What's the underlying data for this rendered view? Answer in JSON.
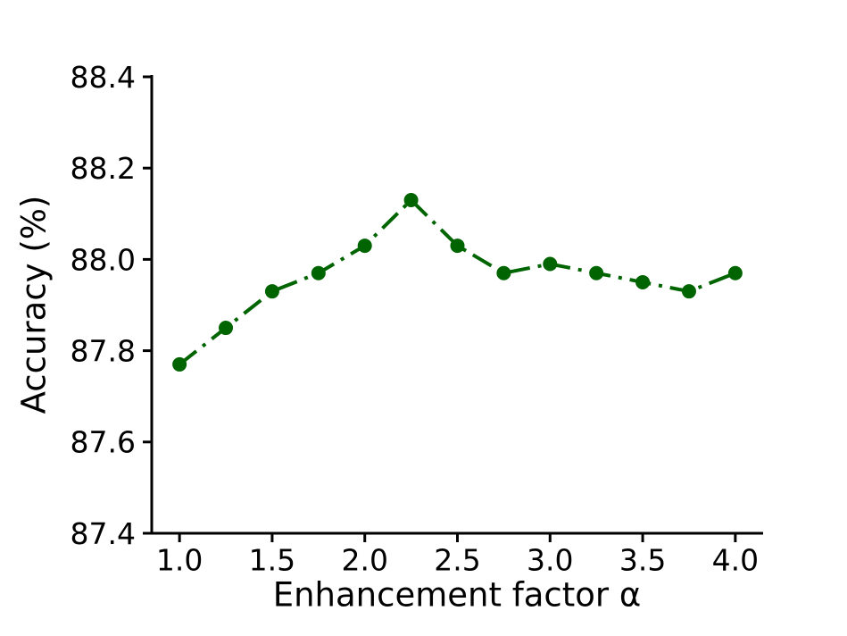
{
  "chart_data": {
    "type": "line",
    "title": "",
    "xlabel": "Enhancement factor α",
    "ylabel": "Accuracy (%)",
    "x": [
      1.0,
      1.25,
      1.5,
      1.75,
      2.0,
      2.25,
      2.5,
      2.75,
      3.0,
      3.25,
      3.5,
      3.75,
      4.0
    ],
    "series": [
      {
        "name": "accuracy",
        "values": [
          87.77,
          87.85,
          87.93,
          87.97,
          88.03,
          88.13,
          88.03,
          87.97,
          87.99,
          87.97,
          87.95,
          87.93,
          87.97
        ]
      }
    ],
    "xlim": [
      0.85,
      4.15
    ],
    "ylim": [
      87.4,
      88.4
    ],
    "xticks": [
      1.0,
      1.5,
      2.0,
      2.5,
      3.0,
      3.5,
      4.0
    ],
    "yticks": [
      87.4,
      87.6,
      87.8,
      88.0,
      88.2,
      88.4
    ],
    "tick_decimals": 1,
    "grid": false,
    "legend": false,
    "line_color": "#006400",
    "line_style": "dashdot",
    "marker": "circle",
    "marker_size_px": 8,
    "axis_color": "#000000",
    "tick_font_px": 33,
    "label_font_px": 37
  }
}
